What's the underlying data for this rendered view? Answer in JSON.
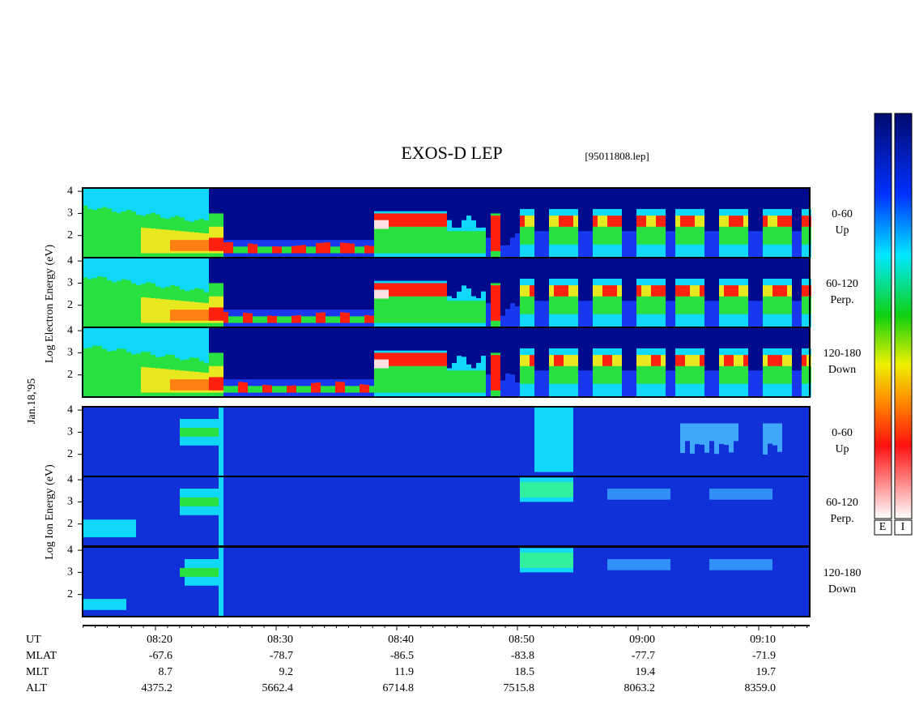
{
  "title": "EXOS-D LEP",
  "file": "[95011808.lep]",
  "electron_axis": "Log Electron Energy (eV)",
  "ion_axis": "Log Ion Energy (eV)",
  "date": "Jan.18,'95",
  "ylim": [
    1,
    4.15
  ],
  "yticks": [
    2,
    3,
    4
  ],
  "panels": [
    {
      "pitch": "0-60",
      "direction": "Up"
    },
    {
      "pitch": "60-120",
      "direction": "Perp."
    },
    {
      "pitch": "120-180",
      "direction": "Down"
    },
    {
      "pitch": "0-60",
      "direction": "Up"
    },
    {
      "pitch": "60-120",
      "direction": "Perp."
    },
    {
      "pitch": "120-180",
      "direction": "Down"
    }
  ],
  "table": {
    "rows": [
      [
        "UT",
        "08:20",
        "08:30",
        "08:40",
        "08:50",
        "09:00",
        "09:10"
      ],
      [
        "MLAT",
        "-67.6",
        "-78.7",
        "-86.5",
        "-83.8",
        "-77.7",
        "-71.9"
      ],
      [
        "MLT",
        "8.7",
        "9.2",
        "11.9",
        "18.5",
        "19.4",
        "19.7"
      ],
      [
        "ALT",
        "4375.2",
        "5662.4",
        "6714.8",
        "7515.8",
        "8063.2",
        "8359.0"
      ]
    ]
  },
  "colorbar_labels": [
    "E",
    "I"
  ]
}
